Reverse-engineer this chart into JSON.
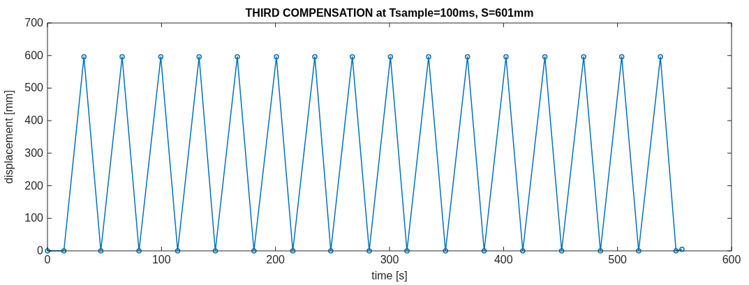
{
  "chart_data": {
    "type": "line",
    "title": "THIRD COMPENSATION at Tsample=100ms, S=601mm",
    "xlabel": "time [s]",
    "ylabel": "displacement [mm]",
    "xlim": [
      0,
      600
    ],
    "xticks": [
      0,
      100,
      200,
      300,
      400,
      500,
      600
    ],
    "ylim": [
      0,
      700
    ],
    "yticks": [
      0,
      100,
      200,
      300,
      400,
      500,
      600,
      700
    ],
    "grid": false,
    "marker": "circle",
    "line_style": "solid",
    "series": [
      {
        "color": "#0072bd",
        "x": [
          0,
          14.4,
          32.0,
          46.8,
          65.5,
          80.3,
          99.4,
          114.2,
          133,
          147.2,
          166.5,
          181.1,
          200.8,
          215.2,
          234.5,
          248.5,
          267.4,
          282.2,
          300.8,
          315.3,
          334.3,
          349.1,
          368.4,
          383,
          402.2,
          416.9,
          436.3,
          451,
          470.3,
          485,
          503.7,
          518.5,
          537.6,
          551.3,
          556.5
        ],
        "values": [
          0,
          0,
          596,
          0,
          596,
          0,
          596,
          0,
          596,
          0,
          596,
          0,
          596,
          0,
          596,
          0,
          596,
          0,
          596,
          0,
          596,
          0,
          596,
          0,
          596,
          0,
          596,
          0,
          596,
          0,
          596,
          0,
          596,
          0,
          5
        ]
      }
    ]
  }
}
